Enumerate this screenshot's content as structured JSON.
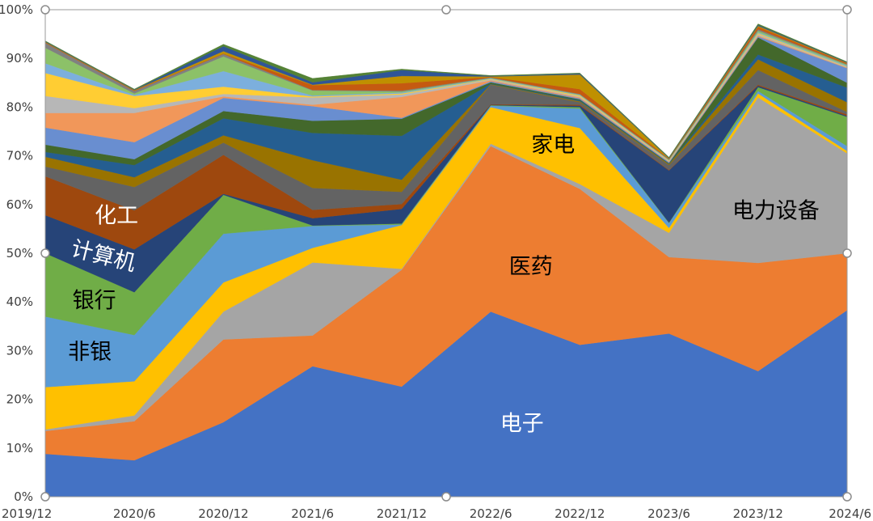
{
  "chart_data": {
    "type": "area",
    "stacked": true,
    "x": [
      "2019/12",
      "2020/6",
      "2020/12",
      "2021/6",
      "2021/12",
      "2022/6",
      "2022/12",
      "2023/6",
      "2023/12",
      "2024/6"
    ],
    "ylim": [
      0,
      1
    ],
    "yticks": [
      "0%",
      "10%",
      "20%",
      "30%",
      "40%",
      "50%",
      "60%",
      "70%",
      "80%",
      "90%",
      "100%"
    ],
    "grid": false,
    "legend": "none",
    "series": [
      {
        "name": "电子",
        "color": "#4472c4",
        "values": [
          0.088,
          0.075,
          0.153,
          0.268,
          0.226,
          0.38,
          0.312,
          0.335,
          0.258,
          0.383
        ]
      },
      {
        "name": "医药",
        "color": "#ed7d31",
        "values": [
          0.047,
          0.08,
          0.17,
          0.063,
          0.24,
          0.34,
          0.32,
          0.157,
          0.222,
          0.117
        ]
      },
      {
        "name": "",
        "color": "#a5a5a5",
        "values": [
          0.003,
          0.012,
          0.057,
          0.15,
          0.002,
          0.005,
          0.01,
          0.05,
          0.34,
          0.205
        ]
      },
      {
        "name": "家电",
        "color": "#ffc000",
        "values": [
          0.087,
          0.07,
          0.06,
          0.03,
          0.09,
          0.075,
          0.115,
          0.01,
          0.008,
          0.005
        ]
      },
      {
        "name": "非银",
        "color": "#5b9bd5",
        "values": [
          0.145,
          0.095,
          0.1,
          0.045,
          0.001,
          0.003,
          0.04,
          0.01,
          0.005,
          0.01
        ]
      },
      {
        "name": "银行",
        "color": "#70ad47",
        "values": [
          0.13,
          0.088,
          0.08,
          0.001,
          0.002,
          0.001,
          0.003,
          0.001,
          0.008,
          0.06
        ]
      },
      {
        "name": "计算机",
        "color": "#264478",
        "values": [
          0.078,
          0.088,
          0.002,
          0.015,
          0.03,
          0.001,
          0.003,
          0.107,
          0.003,
          0.002
        ]
      },
      {
        "name": "化工",
        "color": "#9e480e",
        "values": [
          0.08,
          0.08,
          0.08,
          0.017,
          0.01,
          0.001,
          0.002,
          0.001,
          0.002,
          0.003
        ]
      },
      {
        "name": "",
        "color": "#636363",
        "values": [
          0.02,
          0.048,
          0.025,
          0.045,
          0.025,
          0.04,
          0.005,
          0.01,
          0.03,
          0.005
        ]
      },
      {
        "name": "",
        "color": "#997300",
        "values": [
          0.02,
          0.02,
          0.015,
          0.057,
          0.025,
          0.001,
          0.002,
          0.002,
          0.022,
          0.02
        ]
      },
      {
        "name": "",
        "color": "#255e91",
        "values": [
          0.01,
          0.025,
          0.035,
          0.056,
          0.09,
          0.001,
          0.002,
          0.001,
          0.01,
          0.03
        ]
      },
      {
        "name": "",
        "color": "#43682b",
        "values": [
          0.015,
          0.012,
          0.015,
          0.025,
          0.035,
          0.003,
          0.002,
          0.001,
          0.035,
          0.01
        ]
      },
      {
        "name": "",
        "color": "#698ed0",
        "values": [
          0.035,
          0.035,
          0.027,
          0.03,
          0.002,
          0.002,
          0.002,
          0.002,
          0.002,
          0.03
        ]
      },
      {
        "name": "",
        "color": "#f1975a",
        "values": [
          0.03,
          0.06,
          0.003,
          0.003,
          0.043,
          0.002,
          0.002,
          0.001,
          0.002,
          0.001
        ]
      },
      {
        "name": "",
        "color": "#b7b7b7",
        "values": [
          0.035,
          0.01,
          0.005,
          0.015,
          0.005,
          0.002,
          0.002,
          0.001,
          0.003,
          0.001
        ]
      },
      {
        "name": "",
        "color": "#ffcd33",
        "values": [
          0.047,
          0.025,
          0.015,
          0.002,
          0.002,
          0.001,
          0.002,
          0.001,
          0.002,
          0.001
        ]
      },
      {
        "name": "",
        "color": "#7cafdd",
        "values": [
          0.02,
          0.002,
          0.032,
          0.002,
          0.002,
          0.001,
          0.001,
          0.001,
          0.002,
          0.002
        ]
      },
      {
        "name": "",
        "color": "#8cc168",
        "values": [
          0.032,
          0.003,
          0.03,
          0.01,
          0.002,
          0.001,
          0.001,
          0.001,
          0.003,
          0.002
        ]
      },
      {
        "name": "",
        "color": "#808080",
        "values": [
          0.01,
          0.005,
          0.005,
          0.001,
          0.002,
          0.001,
          0.001,
          0.001,
          0.003,
          0.001
        ]
      },
      {
        "name": "",
        "color": "#c55a11",
        "values": [
          0.001,
          0.001,
          0.001,
          0.01,
          0.015,
          0.001,
          0.01,
          0.001,
          0.005,
          0.002
        ]
      },
      {
        "name": "",
        "color": "#bf9000",
        "values": [
          0.001,
          0.001,
          0.005,
          0.001,
          0.015,
          0.001,
          0.03,
          0.001,
          0.002,
          0.001
        ]
      },
      {
        "name": "",
        "color": "#2f5597",
        "values": [
          0.001,
          0.001,
          0.01,
          0.005,
          0.012,
          0.001,
          0.002,
          0.001,
          0.002,
          0.001
        ]
      },
      {
        "name": "",
        "color": "#548235",
        "values": [
          0.001,
          0.001,
          0.004,
          0.008,
          0.002,
          0.001,
          0.001,
          0.001,
          0.002,
          0.001
        ]
      }
    ],
    "labels": [
      {
        "text": "电子",
        "x": 5.35,
        "y": 0.148,
        "color": "#ffffff",
        "rotate": 0
      },
      {
        "text": "医药",
        "x": 5.45,
        "y": 0.47,
        "color": "#000000",
        "rotate": 0
      },
      {
        "text": "家电",
        "x": 5.7,
        "y": 0.72,
        "color": "#000000",
        "rotate": 0
      },
      {
        "text": "电力设备",
        "x": 8.2,
        "y": 0.585,
        "color": "#000000",
        "rotate": 0
      },
      {
        "text": "非银",
        "x": 0.5,
        "y": 0.295,
        "color": "#000000",
        "rotate": 0
      },
      {
        "text": "银行",
        "x": 0.55,
        "y": 0.4,
        "color": "#000000",
        "rotate": 0
      },
      {
        "text": "计算机",
        "x": 0.65,
        "y": 0.492,
        "color": "#ffffff",
        "rotate": 14
      },
      {
        "text": "化工",
        "x": 0.8,
        "y": 0.575,
        "color": "#ffffff",
        "rotate": 0
      }
    ]
  }
}
